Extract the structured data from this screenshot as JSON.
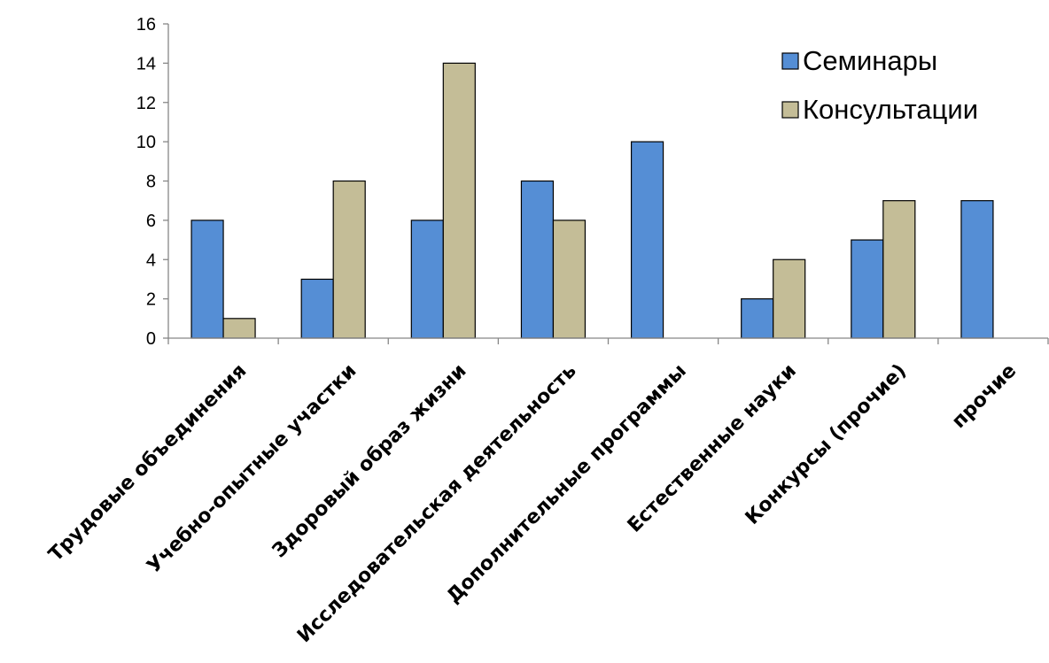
{
  "chart_data": {
    "type": "bar",
    "title": "",
    "xlabel": "",
    "ylabel": "",
    "ylim": [
      0,
      16
    ],
    "yticks": [
      0,
      2,
      4,
      6,
      8,
      10,
      12,
      14,
      16
    ],
    "grid": false,
    "legend_position": "top-right",
    "categories": [
      "Трудовые объединения",
      "Учебно-опытные участки",
      "Здоровый образ жизни",
      "Исследовательская деятельность",
      "Дополнительные программы",
      "Естественные науки",
      "Конкурсы (прочие)",
      "прочие"
    ],
    "series": [
      {
        "name": "Семинары",
        "color": "#558ed5",
        "values": [
          6,
          3,
          6,
          8,
          10,
          2,
          5,
          7
        ]
      },
      {
        "name": "Консультации",
        "color": "#c4bd97",
        "values": [
          1,
          8,
          14,
          6,
          0,
          4,
          7,
          0
        ]
      }
    ]
  }
}
